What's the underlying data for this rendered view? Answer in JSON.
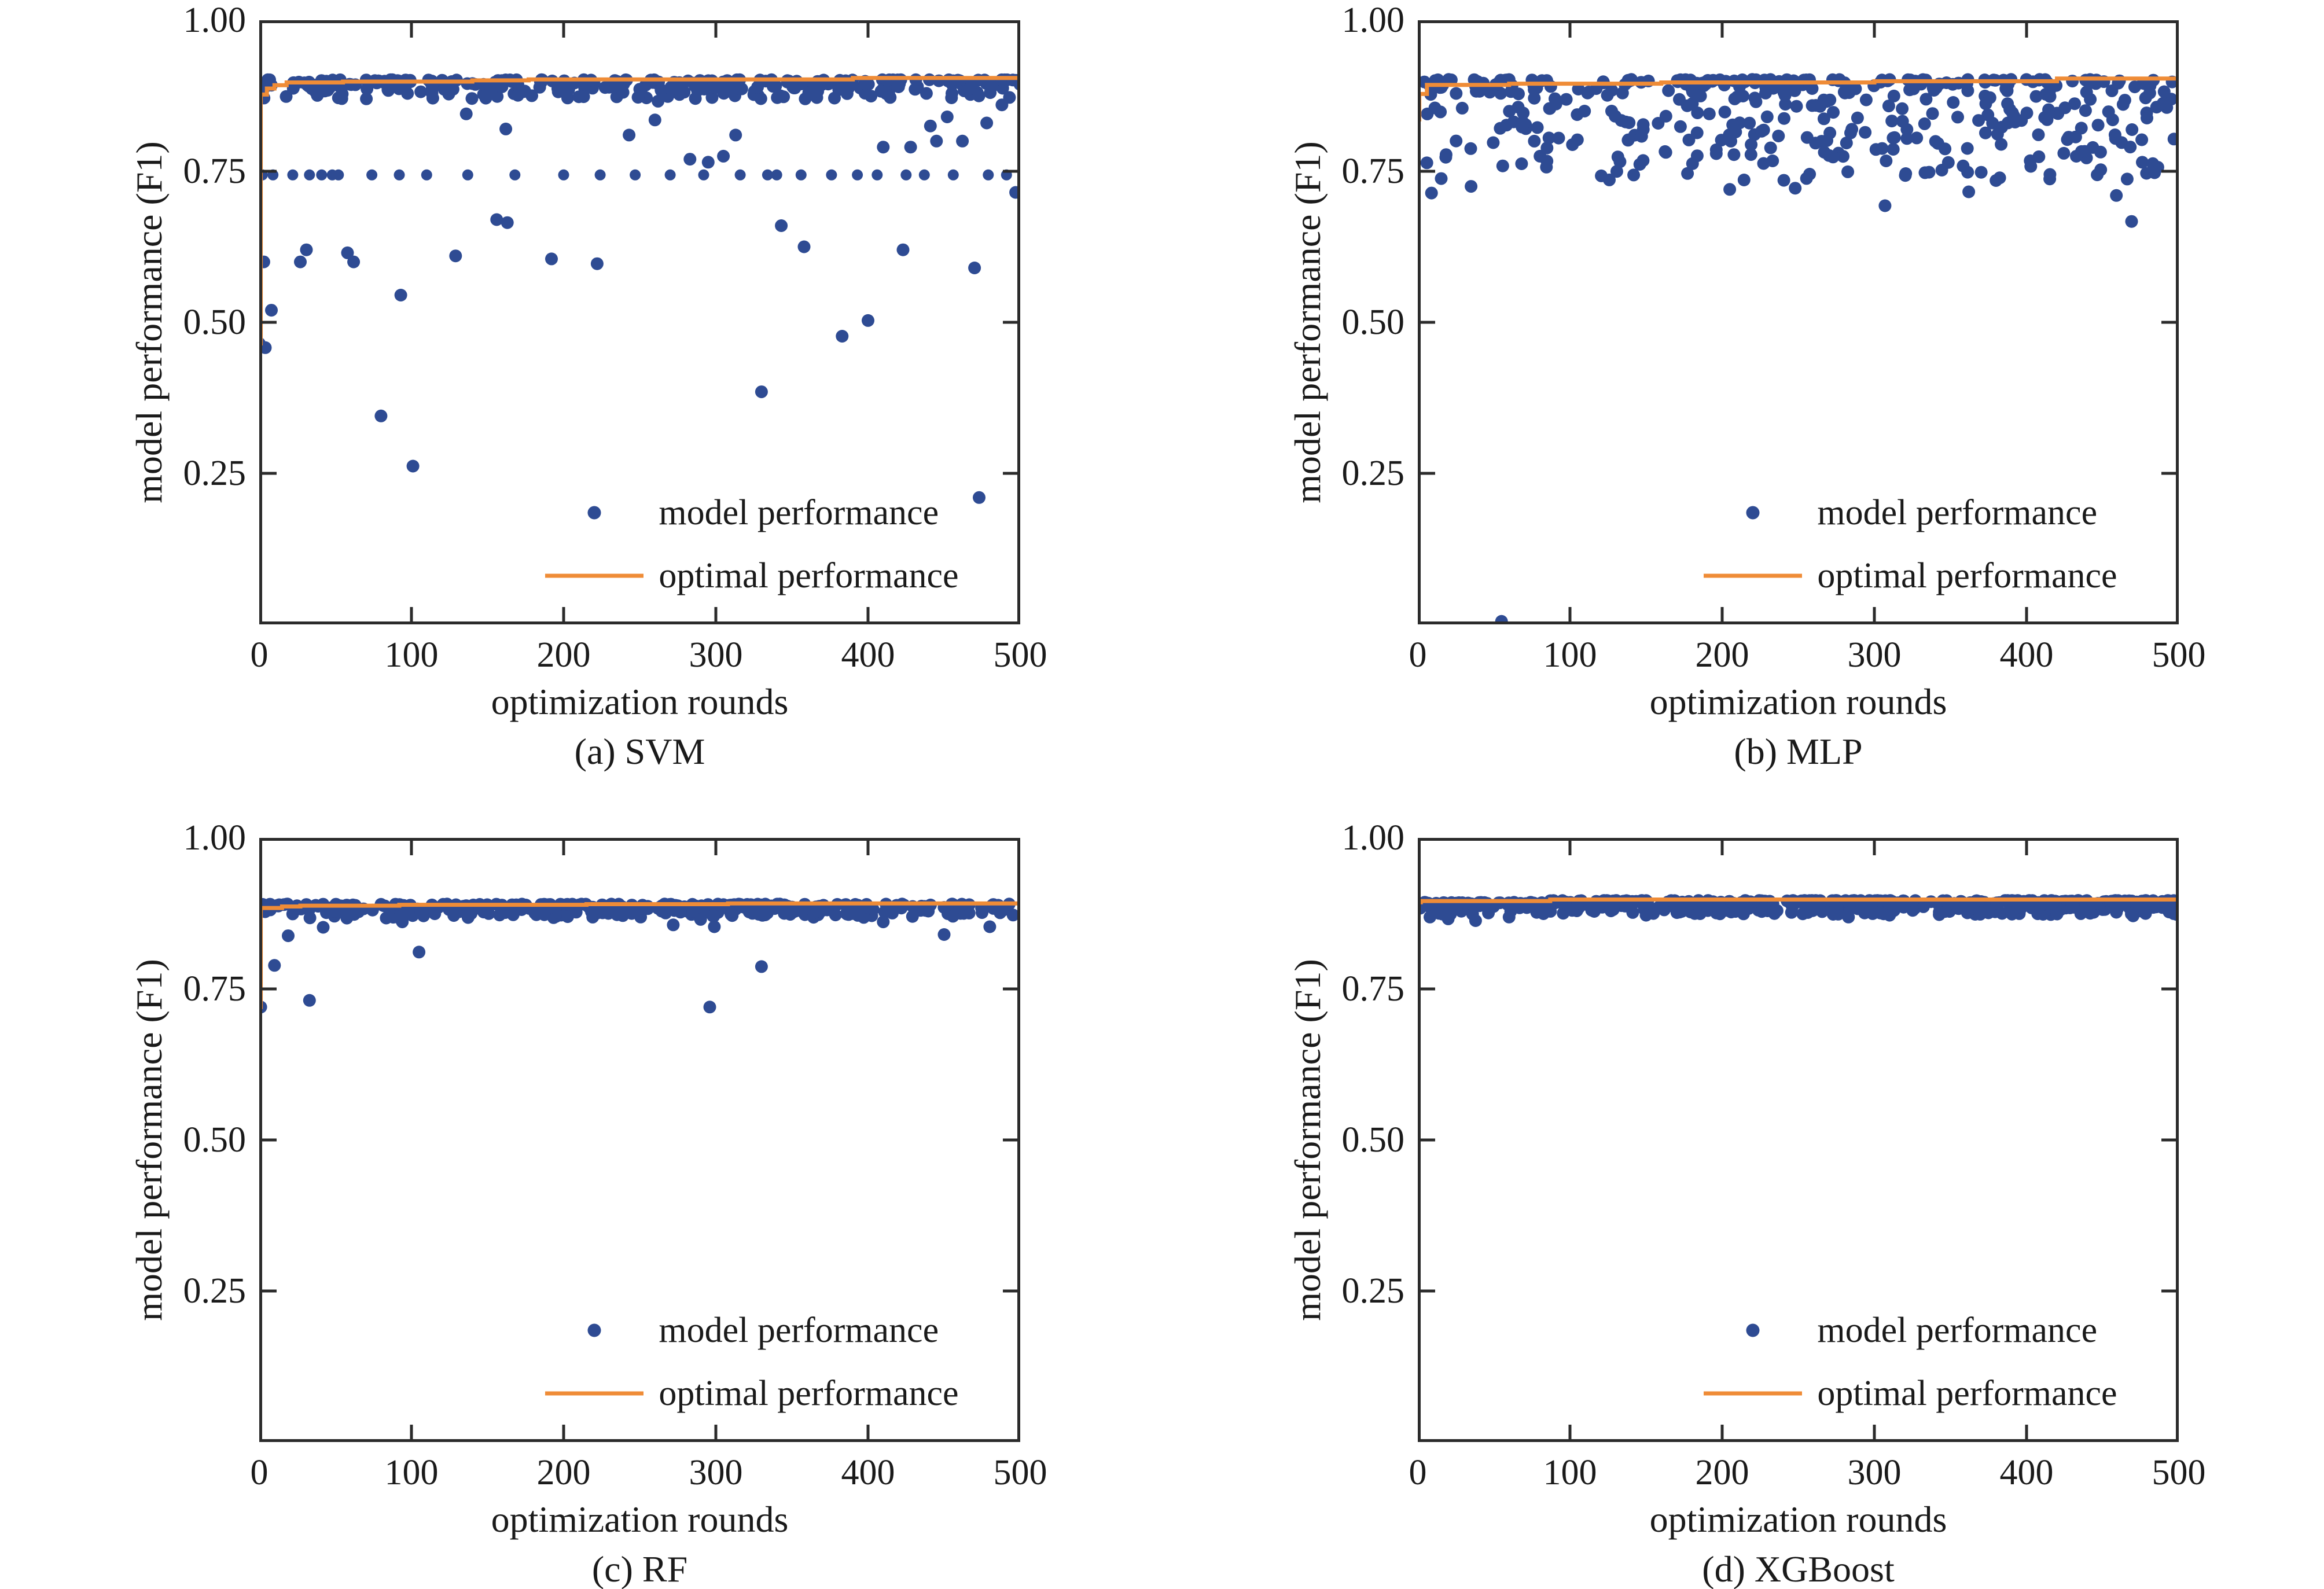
{
  "figure": {
    "background": "#ffffff",
    "text_color": "#1a1a1a",
    "frame_color": "#2b2b2b",
    "scatter_color": "#2e4b93",
    "line_color": "#ef8c37"
  },
  "chart_data": [
    {
      "type": "scatter",
      "caption": "(a) SVM",
      "xlabel": "optimization rounds",
      "ylabel": "model performance (F1)",
      "xlim": [
        0,
        500
      ],
      "ylim": [
        0,
        1
      ],
      "xtick_values": [
        0,
        100,
        200,
        300,
        400,
        500
      ],
      "xtick_labels": [
        "0",
        "100",
        "200",
        "300",
        "400",
        "500"
      ],
      "ytick_values": [
        0.25,
        0.5,
        0.75,
        1.0
      ],
      "ytick_labels": [
        "0.25",
        "0.50",
        "0.75",
        "1.00"
      ],
      "grid": false,
      "legend": [
        "model performance",
        "optimal performance"
      ],
      "legend_position": "lower right",
      "scatter": {
        "band": {
          "n": 300,
          "seed": 7,
          "x_min": 1,
          "x_max": 500,
          "y_top": 0.9015,
          "spread": 0.032,
          "pow": 2.3
        },
        "row_y": 0.744,
        "row_x": [
          2,
          9,
          22,
          33,
          41,
          48,
          52,
          74,
          92,
          110,
          137,
          168,
          200,
          224,
          247,
          270,
          292,
          316,
          334,
          340,
          356,
          376,
          393,
          406,
          425,
          437,
          456,
          479,
          491
        ],
        "outliers": [
          [
            0,
            0.465
          ],
          [
            4,
            0.458
          ],
          [
            3,
            0.6
          ],
          [
            8,
            0.52
          ],
          [
            27,
            0.6
          ],
          [
            31,
            0.62
          ],
          [
            58,
            0.615
          ],
          [
            62,
            0.6
          ],
          [
            80,
            0.345
          ],
          [
            93,
            0.545
          ],
          [
            101,
            0.262
          ],
          [
            129,
            0.61
          ],
          [
            136,
            0.845
          ],
          [
            156,
            0.67
          ],
          [
            163,
            0.665
          ],
          [
            162,
            0.82
          ],
          [
            192,
            0.605
          ],
          [
            222,
            0.597
          ],
          [
            243,
            0.81
          ],
          [
            260,
            0.835
          ],
          [
            262,
            0.866
          ],
          [
            283,
            0.77
          ],
          [
            295,
            0.765
          ],
          [
            305,
            0.775
          ],
          [
            313,
            0.81
          ],
          [
            330,
            0.385
          ],
          [
            343,
            0.66
          ],
          [
            358,
            0.625
          ],
          [
            383,
            0.477
          ],
          [
            400,
            0.503
          ],
          [
            410,
            0.79
          ],
          [
            423,
            0.62
          ],
          [
            428,
            0.79
          ],
          [
            441,
            0.825
          ],
          [
            445,
            0.8
          ],
          [
            452,
            0.84
          ],
          [
            462,
            0.8
          ],
          [
            470,
            0.59
          ],
          [
            473,
            0.21
          ],
          [
            478,
            0.83
          ],
          [
            488,
            0.86
          ],
          [
            497,
            0.715
          ]
        ]
      },
      "optimal_line": [
        [
          0,
          0.465
        ],
        [
          1,
          0.465
        ],
        [
          1,
          0.877
        ],
        [
          5,
          0.877
        ],
        [
          5,
          0.887
        ],
        [
          10,
          0.887
        ],
        [
          10,
          0.8925
        ],
        [
          18,
          0.8925
        ],
        [
          18,
          0.897
        ],
        [
          55,
          0.897
        ],
        [
          55,
          0.8985
        ],
        [
          140,
          0.8985
        ],
        [
          140,
          0.9005
        ],
        [
          177,
          0.9005
        ],
        [
          177,
          0.902
        ],
        [
          390,
          0.902
        ],
        [
          390,
          0.9045
        ],
        [
          500,
          0.9045
        ]
      ]
    },
    {
      "type": "scatter",
      "caption": "(b) MLP",
      "xlabel": "optimization rounds",
      "ylabel": "model performance (F1)",
      "xlim": [
        0,
        500
      ],
      "ylim": [
        0,
        1
      ],
      "xtick_values": [
        0,
        100,
        200,
        300,
        400,
        500
      ],
      "xtick_labels": [
        "0",
        "100",
        "200",
        "300",
        "400",
        "500"
      ],
      "ytick_values": [
        0.25,
        0.5,
        0.75,
        1.0
      ],
      "ytick_labels": [
        "0.25",
        "0.50",
        "0.75",
        "1.00"
      ],
      "grid": false,
      "legend": [
        "model performance",
        "optimal performance"
      ],
      "legend_position": "lower right",
      "scatter": {
        "band": {
          "n": 430,
          "seed": 13,
          "x_min": 2,
          "x_max": 499,
          "y_top": 0.902,
          "spread": 0.168,
          "pow": 2.0
        },
        "row_y": null,
        "row_x": [],
        "outliers": [
          [
            55,
            0.005
          ],
          [
            9,
            0.714
          ],
          [
            35,
            0.725
          ],
          [
            205,
            0.72
          ],
          [
            248,
            0.722
          ],
          [
            307,
            0.693
          ],
          [
            362,
            0.716
          ],
          [
            459,
            0.71
          ],
          [
            469,
            0.667
          ]
        ]
      },
      "optimal_line": [
        [
          0,
          0.836
        ],
        [
          1,
          0.836
        ],
        [
          1,
          0.878
        ],
        [
          6,
          0.878
        ],
        [
          6,
          0.893
        ],
        [
          60,
          0.893
        ],
        [
          60,
          0.895
        ],
        [
          160,
          0.895
        ],
        [
          160,
          0.897
        ],
        [
          300,
          0.897
        ],
        [
          300,
          0.899
        ],
        [
          420,
          0.899
        ],
        [
          420,
          0.9035
        ],
        [
          500,
          0.9035
        ]
      ]
    },
    {
      "type": "scatter",
      "caption": "(c) RF",
      "xlabel": "optimization rounds",
      "ylabel": "model performance (F1)",
      "xlim": [
        0,
        500
      ],
      "ylim": [
        0,
        1
      ],
      "xtick_values": [
        0,
        100,
        200,
        300,
        400,
        500
      ],
      "xtick_labels": [
        "0",
        "100",
        "200",
        "300",
        "400",
        "500"
      ],
      "ytick_values": [
        0.25,
        0.5,
        0.75,
        1.0
      ],
      "ytick_labels": [
        "0.25",
        "0.50",
        "0.75",
        "1.00"
      ],
      "grid": false,
      "legend": [
        "model performance",
        "optimal performance"
      ],
      "legend_position": "lower right",
      "scatter": {
        "band": {
          "n": 360,
          "seed": 21,
          "x_min": 1,
          "x_max": 500,
          "y_top": 0.8905,
          "spread": 0.0235,
          "pow": 1.8
        },
        "row_y": null,
        "row_x": [],
        "outliers": [
          [
            1,
            0.72
          ],
          [
            10,
            0.789
          ],
          [
            19,
            0.838
          ],
          [
            33,
            0.731
          ],
          [
            42,
            0.852
          ],
          [
            94,
            0.861
          ],
          [
            105,
            0.811
          ],
          [
            272,
            0.856
          ],
          [
            290,
            0.865
          ],
          [
            296,
            0.72
          ],
          [
            299,
            0.853
          ],
          [
            330,
            0.787
          ],
          [
            410,
            0.861
          ],
          [
            450,
            0.84
          ],
          [
            480,
            0.853
          ]
        ]
      },
      "optimal_line": [
        [
          0,
          0.72
        ],
        [
          1,
          0.72
        ],
        [
          1,
          0.884
        ],
        [
          15,
          0.884
        ],
        [
          15,
          0.8865
        ],
        [
          27,
          0.8865
        ],
        [
          27,
          0.8878
        ],
        [
          92,
          0.8878
        ],
        [
          92,
          0.8893
        ],
        [
          215,
          0.8893
        ],
        [
          215,
          0.8903
        ],
        [
          308,
          0.8903
        ],
        [
          308,
          0.8916
        ],
        [
          500,
          0.8916
        ]
      ]
    },
    {
      "type": "scatter",
      "caption": "(d) XGBoost",
      "xlabel": "optimization rounds",
      "ylabel": "model performance (F1)",
      "xlim": [
        0,
        500
      ],
      "ylim": [
        0,
        1
      ],
      "xtick_values": [
        0,
        100,
        200,
        300,
        400,
        500
      ],
      "xtick_labels": [
        "0",
        "100",
        "200",
        "300",
        "400",
        "500"
      ],
      "ytick_values": [
        0.25,
        0.5,
        0.75,
        1.0
      ],
      "ytick_labels": [
        "0.25",
        "0.50",
        "0.75",
        "1.00"
      ],
      "grid": false,
      "legend": [
        "model performance",
        "optimal performance"
      ],
      "legend_position": "lower right",
      "scatter": {
        "band": {
          "n": 500,
          "seed": 33,
          "x_min": 1,
          "x_max": 500,
          "y_top": 0.8965,
          "spread": 0.0235,
          "pow": 1.9,
          "cap_before": [
            87,
            0.8935
          ]
        },
        "row_y": null,
        "row_x": [],
        "outliers": [
          [
            8,
            0.869
          ],
          [
            20,
            0.866
          ],
          [
            38,
            0.863
          ],
          [
            60,
            0.869
          ],
          [
            150,
            0.872
          ],
          [
            283,
            0.869
          ],
          [
            310,
            0.872
          ],
          [
            420,
            0.874
          ],
          [
            470,
            0.871
          ]
        ]
      },
      "optimal_line": [
        [
          0,
          0.8935
        ],
        [
          2,
          0.8935
        ],
        [
          2,
          0.8955
        ],
        [
          87,
          0.8955
        ],
        [
          87,
          0.898
        ],
        [
          500,
          0.898
        ]
      ]
    }
  ]
}
